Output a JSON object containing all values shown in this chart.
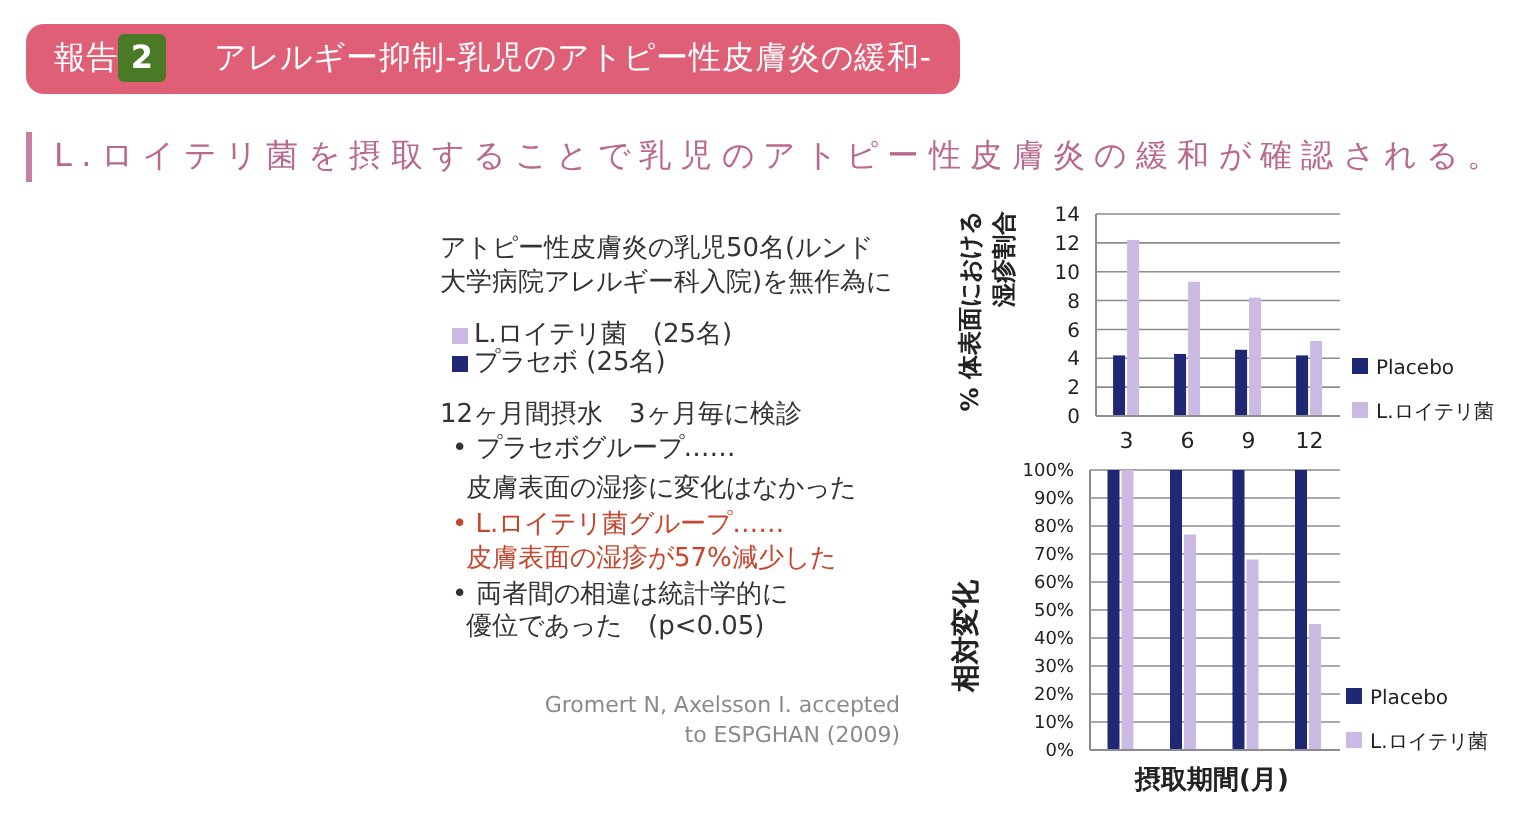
{
  "chart_data": [
    {
      "type": "other",
      "title": "アレルギー抑制-乳児のアトピー性皮膚炎の緩和-",
      "subtitle": "L.ロイテリ菌を摂取することで乳児のアトピー性皮膚炎の緩和が確認される。",
      "annotations": [
        "報告",
        "2",
        "アトピー性皮膚炎の乳児50名(ルンド",
        "大学病院アレルギー科入院)を無作為に",
        "L.ロイテリ菌　(25名)",
        "プラセボ (25名)",
        "12ヶ月間摂水　3ヶ月毎に検診",
        "• プラセボグループ……",
        "皮膚表面の湿疹に変化はなかった",
        "• L.ロイテリ菌グループ……",
        "皮膚表面の湿疹が57%減少した",
        "• 両者間の相違は統計学的に",
        "優位であった　(p<0.05)",
        "Gromert N, Axelsson I. accepted",
        "to ESPGHAN (2009)"
      ]
    },
    {
      "type": "bar",
      "ylabel": "% 体表面における湿疹割合",
      "categories": [
        "3",
        "6",
        "9",
        "12"
      ],
      "series": [
        {
          "name": "Placebo",
          "color": "#1e2874",
          "values": [
            4.2,
            4.3,
            4.6,
            4.2
          ]
        },
        {
          "name": "L.ロイテリ菌",
          "color": "#cbbbe4",
          "values": [
            12.2,
            9.3,
            8.2,
            5.2
          ]
        }
      ],
      "ylim": [
        0,
        14
      ],
      "yticks": [
        0,
        2,
        4,
        6,
        8,
        10,
        12,
        14
      ],
      "grid": "y",
      "legend": "right"
    },
    {
      "type": "bar",
      "ylabel": "相対変化",
      "xlabel": "摂取期間(月)",
      "categories": [
        "3",
        "6",
        "9",
        "12"
      ],
      "series": [
        {
          "name": "Placebo",
          "color": "#1e2874",
          "values": [
            100,
            100,
            100,
            100
          ]
        },
        {
          "name": "L.ロイテリ菌",
          "color": "#cbbbe4",
          "values": [
            100,
            77,
            68,
            45
          ]
        }
      ],
      "ylim": [
        0,
        100
      ],
      "yticks": [
        {
          "value": 0,
          "label": "0%"
        },
        {
          "value": 10,
          "label": "10%"
        },
        {
          "value": 20,
          "label": "20%"
        },
        {
          "value": 30,
          "label": "30%"
        },
        {
          "value": 40,
          "label": "40%"
        },
        {
          "value": 50,
          "label": "50%"
        },
        {
          "value": 60,
          "label": "60%"
        },
        {
          "value": 70,
          "label": "70%"
        },
        {
          "value": 80,
          "label": "80%"
        },
        {
          "value": 90,
          "label": "90%"
        },
        {
          "value": 100,
          "label": "100%"
        }
      ],
      "grid": "y",
      "legend": "right",
      "tick_labels": "y"
    }
  ]
}
